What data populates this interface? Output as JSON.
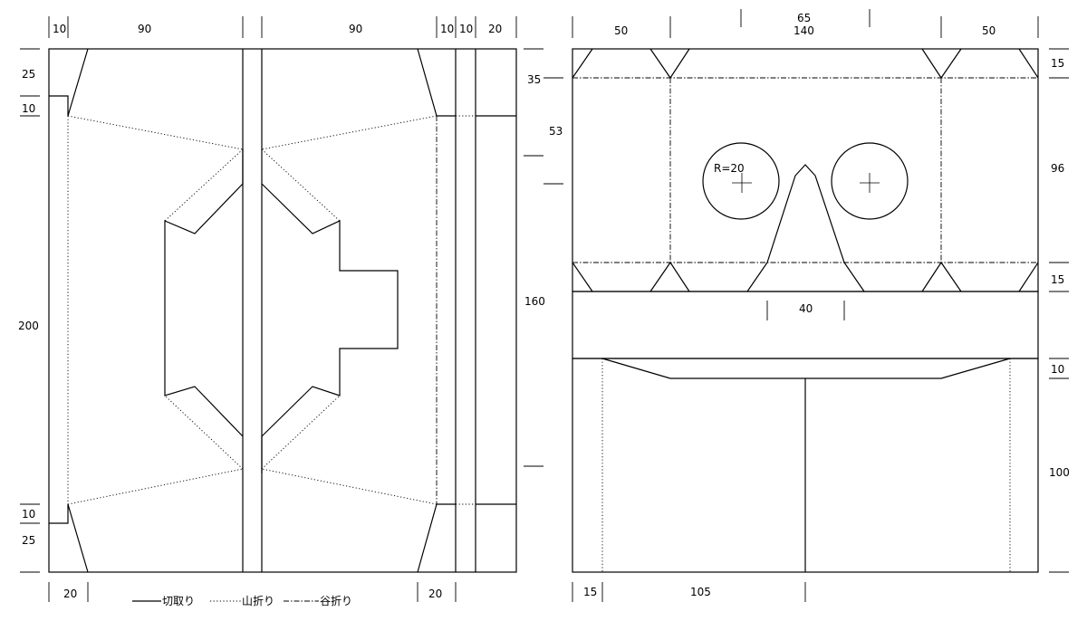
{
  "dimensions": {
    "left_top": [
      "10",
      "90",
      "90",
      "10",
      "10",
      "20"
    ],
    "left_side": [
      "25",
      "10",
      "200",
      "10",
      "25"
    ],
    "left_bottom": [
      "20",
      "20"
    ],
    "center_side": [
      "35",
      "53",
      "160"
    ],
    "right_top": [
      "50",
      "65",
      "140",
      "50"
    ],
    "right_side": [
      "15",
      "96",
      "15",
      "10",
      "100"
    ],
    "radius": "R=20",
    "nose_width": "40",
    "right_bottom": [
      "15",
      "105"
    ]
  },
  "legend": {
    "cut": "切取り",
    "mountain_fold": "山折り",
    "valley_fold": "谷折り"
  }
}
